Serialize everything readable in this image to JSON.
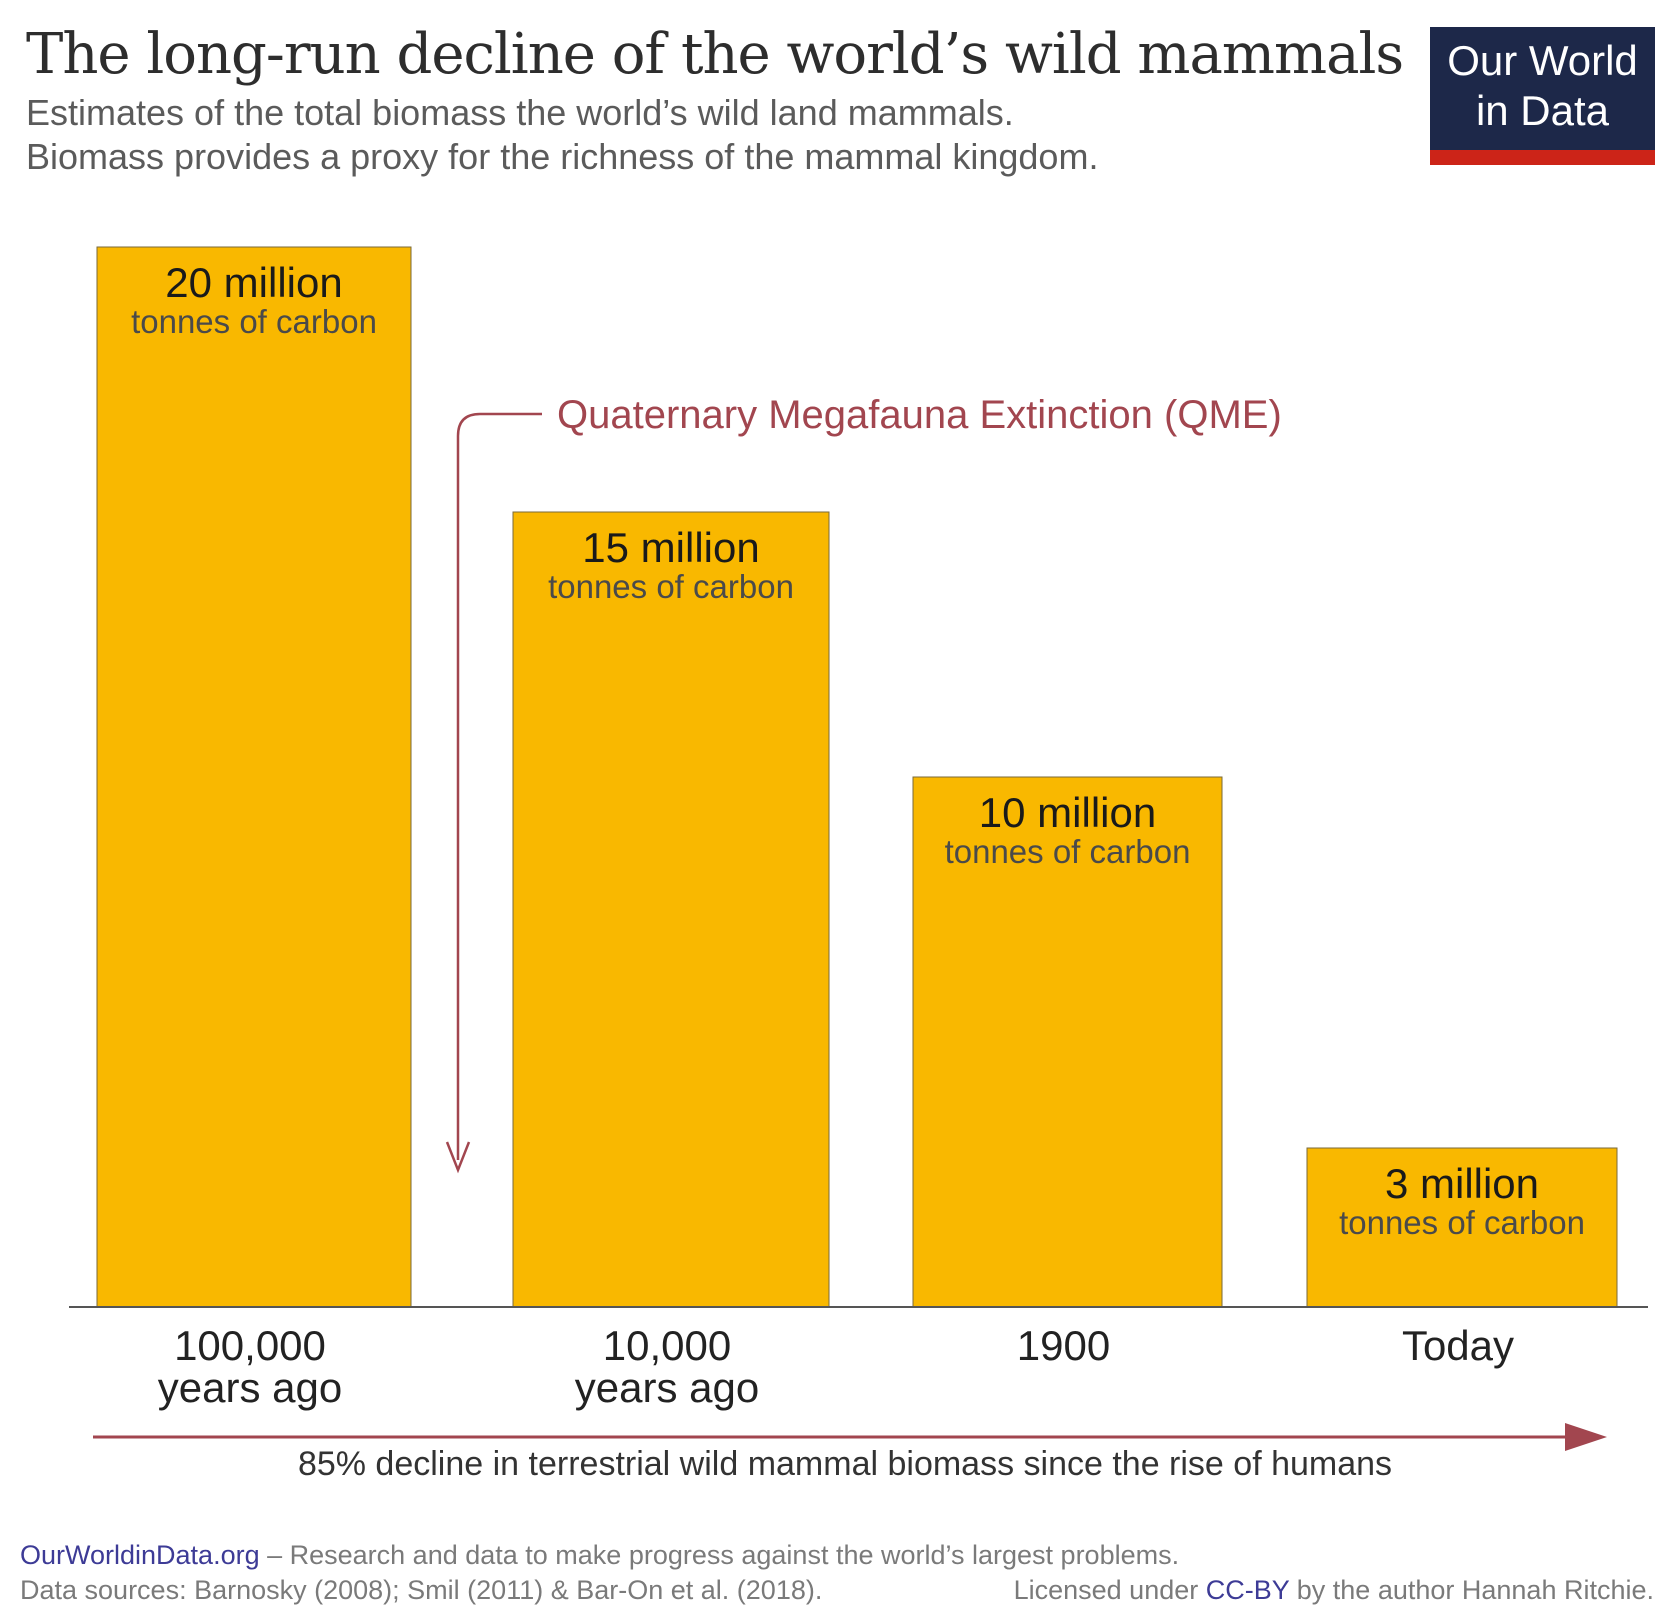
{
  "header": {
    "title": "The long-run decline of the world’s wild mammals",
    "subtitle_lines": [
      "Estimates of the total biomass the world’s wild land mammals.",
      "Biomass provides a proxy for the richness of the mammal kingdom."
    ],
    "logo_lines": [
      "Our World",
      "in Data"
    ]
  },
  "chart_data": {
    "type": "bar",
    "categories": [
      [
        "100,000",
        "years ago"
      ],
      [
        "10,000",
        "years ago"
      ],
      [
        "1900"
      ],
      [
        "Today"
      ]
    ],
    "values": [
      20,
      15,
      10,
      3
    ],
    "value_labels": [
      "20 million",
      "15 million",
      "10 million",
      "3 million"
    ],
    "unit_label": "tonnes of carbon",
    "ylim": [
      0,
      20
    ],
    "grid": false,
    "bar_color": "#f9b800",
    "annotation": {
      "text": "Quaternary Megafauna Extinction (QME)",
      "color": "#a2464f",
      "between": [
        "100,000 years ago",
        "10,000 years ago"
      ]
    },
    "bottom_arrow_label": "85% decline in terrestrial wild mammal biomass since the rise of humans"
  },
  "footer": {
    "site": "OurWorldinData.org",
    "tagline": " – Research and data to make progress against the world’s largest problems.",
    "sources": "Data sources: Barnosky (2008); Smil (2011) & Bar-On et al. (2018).",
    "license_prefix": "Licensed under ",
    "license": "CC-BY",
    "license_suffix": " by the author Hannah Ritchie."
  }
}
